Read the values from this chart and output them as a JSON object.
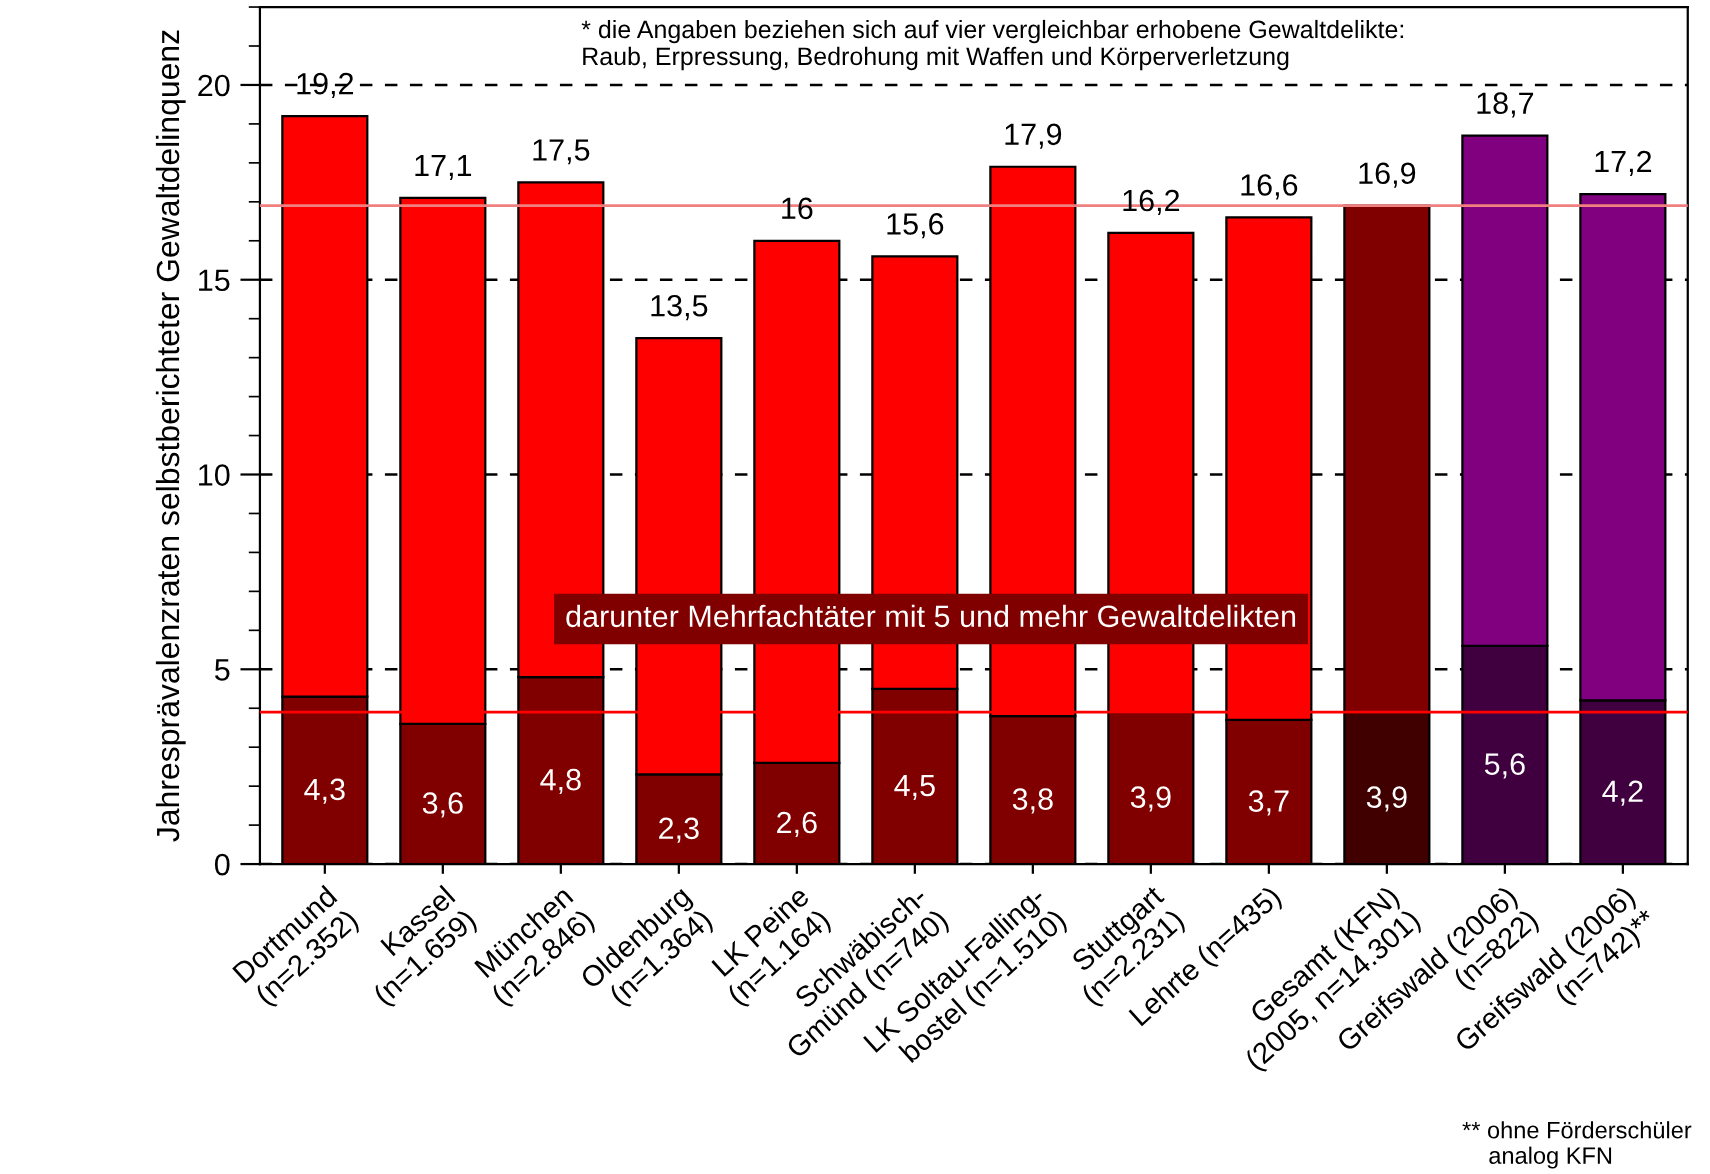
{
  "chart_data": {
    "type": "bar",
    "stacked": true,
    "ylabel": "Jahresprävalenzraten selbstberichteter Gewaltdelinquenz",
    "categories": [
      "Dortmund\n(n=2.352)",
      "Kassel\n(n=1.659)",
      "München\n(n=2.846)",
      "Oldenburg\n(n=1.364)",
      "LK Peine\n(n=1.164)",
      "Schwäbisch-\nGmünd (n=740)",
      "LK Soltau-Falling-\nbostel (n=1.510)",
      "Stuttgart\n(n=2.231)",
      "Lehrte (n=435)",
      "Gesamt (KFN)\n(2005, n=14.301)",
      "Greifswald (2006)\n(n=822)",
      "Greifswald (2006)\n(n=742)**"
    ],
    "series": [
      {
        "colors": [
          "#800000",
          "#800000",
          "#800000",
          "#800000",
          "#800000",
          "#800000",
          "#800000",
          "#800000",
          "#800000",
          "#400000",
          "#400040",
          "#400040"
        ],
        "values": [
          4.3,
          3.6,
          4.8,
          2.3,
          2.6,
          4.5,
          3.8,
          3.9,
          3.7,
          3.9,
          5.6,
          4.2
        ],
        "value_labels": [
          "4,3",
          "3,6",
          "4,8",
          "2,3",
          "2,6",
          "4,5",
          "3,8",
          "3,9",
          "3,7",
          "3,9",
          "5,6",
          "4,2"
        ]
      },
      {
        "colors": [
          "#ff0000",
          "#ff0000",
          "#ff0000",
          "#ff0000",
          "#ff0000",
          "#ff0000",
          "#ff0000",
          "#ff0000",
          "#ff0000",
          "#800000",
          "#800080",
          "#800080"
        ],
        "values": [
          14.9,
          13.5,
          12.7,
          11.2,
          13.4,
          11.1,
          14.1,
          12.3,
          12.9,
          13.0,
          13.1,
          13.0
        ]
      }
    ],
    "totals": [
      "19,2",
      "17,1",
      "17,5",
      "13,5",
      "16",
      "15,6",
      "17,9",
      "16,2",
      "16,6",
      "16,9",
      "18,7",
      "17,2"
    ],
    "ylim": [
      0,
      22
    ],
    "yticks": [
      0,
      {
        "value": 1,
        "label": null
      },
      {
        "value": 2,
        "label": null
      },
      {
        "value": 3,
        "label": null
      },
      {
        "value": 4,
        "label": null
      },
      5,
      {
        "value": 6,
        "label": null
      },
      {
        "value": 7,
        "label": null
      },
      {
        "value": 8,
        "label": null
      },
      {
        "value": 9,
        "label": null
      },
      10,
      {
        "value": 11,
        "label": null
      },
      {
        "value": 12,
        "label": null
      },
      {
        "value": 13,
        "label": null
      },
      {
        "value": 14,
        "label": null
      },
      15,
      {
        "value": 16,
        "label": null
      },
      {
        "value": 17,
        "label": null
      },
      {
        "value": 18,
        "label": null
      },
      {
        "value": 19,
        "label": null
      },
      20,
      {
        "value": 21,
        "label": null
      },
      {
        "value": 22,
        "label": null
      }
    ],
    "grid": "y",
    "ref_lines": [
      {
        "axis": "y",
        "value": 16.9,
        "color": "#f08080"
      },
      {
        "axis": "y",
        "value": 3.9,
        "color": "#ff0000"
      }
    ],
    "annotations": [
      "* die Angaben beziehen sich auf vier vergleichbar erhobene Gewaltdelikte:\nRaub, Erpressung, Bedrohung mit Waffen und Körperverletzung",
      "darunter Mehrfachtäter mit 5 und mehr Gewaltdelikten",
      "** ohne Förderschüler\n    analog KFN"
    ]
  }
}
